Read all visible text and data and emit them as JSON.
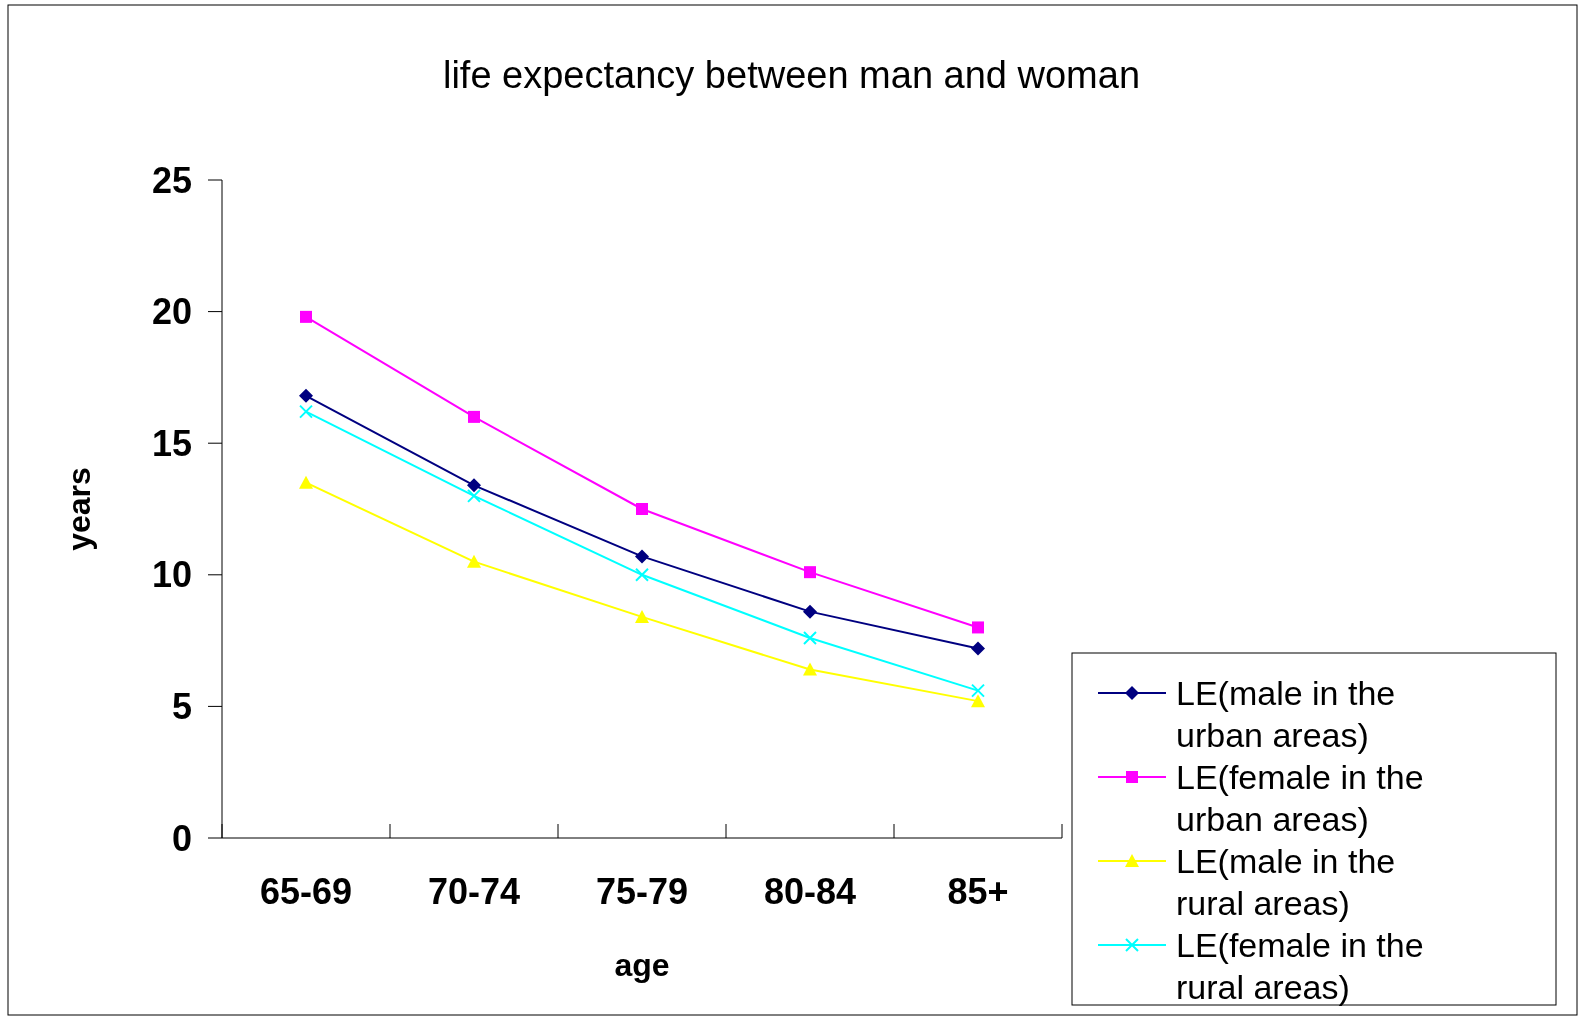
{
  "chart_data": {
    "type": "line",
    "title": "life expectancy between man and woman",
    "xlabel": "age",
    "ylabel": "years",
    "categories": [
      "65-69",
      "70-74",
      "75-79",
      "80-84",
      "85+"
    ],
    "series": [
      {
        "name": "LE(male in the urban areas)",
        "color": "#000080",
        "marker": "diamond",
        "values": [
          16.8,
          13.4,
          10.7,
          8.6,
          7.2
        ]
      },
      {
        "name": "LE(female in the urban areas)",
        "color": "#ff00ff",
        "marker": "square",
        "values": [
          19.8,
          16.0,
          12.5,
          10.1,
          8.0
        ]
      },
      {
        "name": "LE(male in the rural areas)",
        "color": "#ffff00",
        "marker": "triangle",
        "values": [
          13.5,
          10.5,
          8.4,
          6.4,
          5.2
        ]
      },
      {
        "name": "LE(female in the rural areas)",
        "color": "#00ffff",
        "marker": "cross",
        "values": [
          16.2,
          13.0,
          10.0,
          7.6,
          5.6
        ]
      }
    ],
    "ylim": [
      0,
      25
    ],
    "yticks": [
      0,
      5,
      10,
      15,
      20,
      25
    ],
    "grid": false,
    "legend": "bottom right"
  }
}
